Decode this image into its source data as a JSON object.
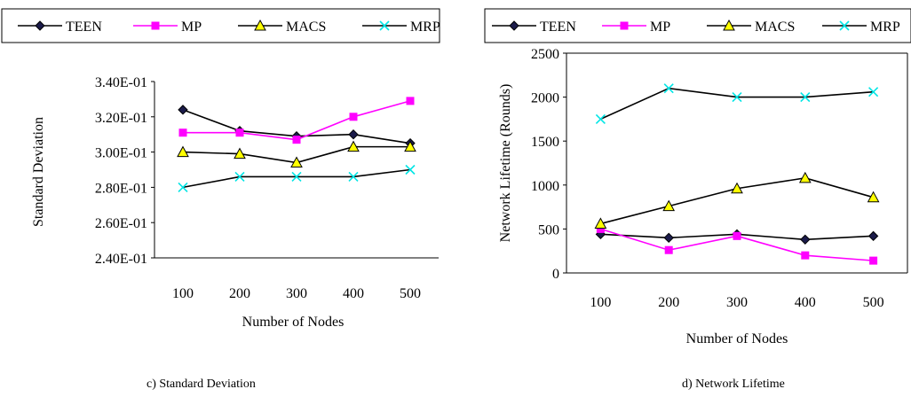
{
  "chart_data": [
    {
      "type": "line",
      "caption": "c) Standard Deviation",
      "xlabel": "Number of Nodes",
      "ylabel": "Standard Deviation",
      "categories": [
        "100",
        "200",
        "300",
        "400",
        "500"
      ],
      "ylim": [
        0.24,
        0.34
      ],
      "yticks": [
        "2.40E-01",
        "2.60E-01",
        "2.80E-01",
        "3.00E-01",
        "3.20E-01",
        "3.40E-01"
      ],
      "grid": false,
      "legend_position": "top",
      "series": [
        {
          "name": "TEEN",
          "values": [
            0.324,
            0.312,
            0.309,
            0.31,
            0.305
          ],
          "color": "#000000",
          "marker_color": "#1b1b4a",
          "marker": "diamond"
        },
        {
          "name": "MP",
          "values": [
            0.311,
            0.311,
            0.307,
            0.32,
            0.329
          ],
          "color": "#ff00ff",
          "marker_color": "#ff00ff",
          "marker": "square"
        },
        {
          "name": "MACS",
          "values": [
            0.3,
            0.299,
            0.294,
            0.303,
            0.303
          ],
          "color": "#000000",
          "marker_color": "#ffff00",
          "marker": "triangle"
        },
        {
          "name": "MRP",
          "values": [
            0.28,
            0.286,
            0.286,
            0.286,
            0.29
          ],
          "color": "#000000",
          "marker_color": "#00e5e5",
          "marker": "x"
        }
      ]
    },
    {
      "type": "line",
      "caption": "d) Network Lifetime",
      "xlabel": "Number of Nodes",
      "ylabel": "Network Lifetime (Rounds)",
      "categories": [
        "100",
        "200",
        "300",
        "400",
        "500"
      ],
      "ylim": [
        0,
        2500
      ],
      "yticks": [
        "0",
        "500",
        "1000",
        "1500",
        "2000",
        "2500"
      ],
      "grid": false,
      "legend_position": "top",
      "series": [
        {
          "name": "TEEN",
          "values": [
            440,
            400,
            440,
            380,
            420
          ],
          "color": "#000000",
          "marker_color": "#1b1b4a",
          "marker": "diamond"
        },
        {
          "name": "MP",
          "values": [
            500,
            260,
            420,
            200,
            140
          ],
          "color": "#ff00ff",
          "marker_color": "#ff00ff",
          "marker": "square"
        },
        {
          "name": "MACS",
          "values": [
            560,
            760,
            960,
            1080,
            860
          ],
          "color": "#000000",
          "marker_color": "#ffff00",
          "marker": "triangle"
        },
        {
          "name": "MRP",
          "values": [
            1750,
            2100,
            2000,
            2000,
            2060
          ],
          "color": "#000000",
          "marker_color": "#00e5e5",
          "marker": "x"
        }
      ]
    }
  ]
}
